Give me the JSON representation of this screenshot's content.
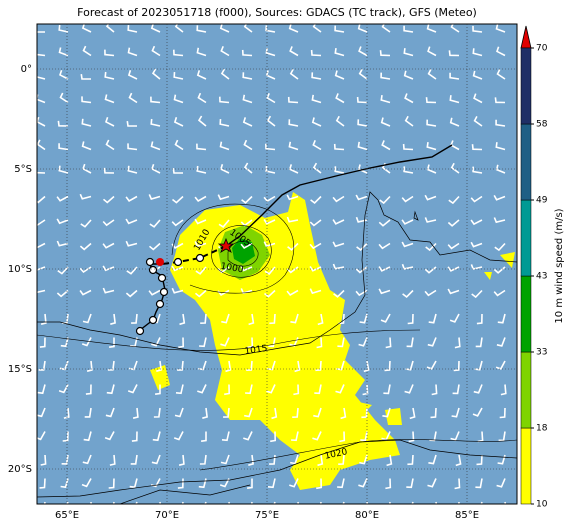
{
  "map": {
    "title": "Forecast of 2023051718 (f000), Sources: GDACS (TC track), GFS (Meteo)",
    "xlim": [
      63.5,
      87.5
    ],
    "ylim": [
      -21.75,
      2.25
    ],
    "lon_ticks": [
      {
        "value": 65,
        "label": "65°E"
      },
      {
        "value": 70,
        "label": "70°E"
      },
      {
        "value": 75,
        "label": "75°E"
      },
      {
        "value": 80,
        "label": "80°E"
      },
      {
        "value": 85,
        "label": "85°E"
      }
    ],
    "lat_ticks": [
      {
        "value": 0,
        "label": "0°"
      },
      {
        "value": -5,
        "label": "5°S"
      },
      {
        "value": -10,
        "label": "10°S"
      },
      {
        "value": -15,
        "label": "15°S"
      },
      {
        "value": -20,
        "label": "20°S"
      }
    ],
    "isobars": [
      1010,
      1005,
      1000,
      1015,
      1020
    ],
    "colorbar": {
      "label": "10 m wind speed (m/s)",
      "levels": [
        10,
        18,
        33,
        43,
        49,
        58,
        70
      ],
      "colors": [
        "#ffff00",
        "#7fd400",
        "#00a300",
        "#009a94",
        "#1f5f85",
        "#1f2f66"
      ]
    }
  }
}
